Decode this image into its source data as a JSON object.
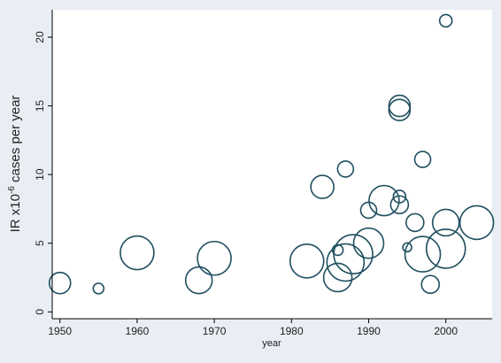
{
  "chart_data": {
    "type": "scatter",
    "title": "",
    "xlabel": "year",
    "ylabel_main": "IR x10",
    "ylabel_exp": "-6",
    "ylabel_rest": " cases per year",
    "xlim": [
      1949,
      2006
    ],
    "ylim": [
      -0.5,
      22
    ],
    "xticks": [
      1950,
      1960,
      1970,
      1980,
      1990,
      2000
    ],
    "yticks": [
      0,
      5,
      10,
      15,
      20
    ],
    "grid": false,
    "marker": "hollow circle sized by weight",
    "colors": {
      "plot_bg": "#ffffff",
      "outer_bg": "#e8eef3",
      "marker": "#1f4f5f",
      "axis": "#000000"
    },
    "points": [
      {
        "x": 1950,
        "y": 2.1,
        "size": 12
      },
      {
        "x": 1955,
        "y": 1.7,
        "size": 6
      },
      {
        "x": 1960,
        "y": 4.3,
        "size": 19
      },
      {
        "x": 1968,
        "y": 2.3,
        "size": 15
      },
      {
        "x": 1970,
        "y": 3.9,
        "size": 19
      },
      {
        "x": 1982,
        "y": 3.7,
        "size": 19
      },
      {
        "x": 1984,
        "y": 9.1,
        "size": 13
      },
      {
        "x": 1986,
        "y": 4.5,
        "size": 6
      },
      {
        "x": 1986,
        "y": 2.5,
        "size": 16
      },
      {
        "x": 1987,
        "y": 10.4,
        "size": 9
      },
      {
        "x": 1987,
        "y": 3.6,
        "size": 21
      },
      {
        "x": 1988,
        "y": 4.2,
        "size": 22
      },
      {
        "x": 1990,
        "y": 5.0,
        "size": 17
      },
      {
        "x": 1990,
        "y": 7.4,
        "size": 9
      },
      {
        "x": 1992,
        "y": 8.1,
        "size": 17
      },
      {
        "x": 1994,
        "y": 15.0,
        "size": 12
      },
      {
        "x": 1994,
        "y": 14.7,
        "size": 12
      },
      {
        "x": 1994,
        "y": 8.4,
        "size": 7
      },
      {
        "x": 1994,
        "y": 7.8,
        "size": 10
      },
      {
        "x": 1995,
        "y": 4.7,
        "size": 5
      },
      {
        "x": 1996,
        "y": 6.5,
        "size": 10
      },
      {
        "x": 1997,
        "y": 11.1,
        "size": 9
      },
      {
        "x": 1997,
        "y": 4.2,
        "size": 20
      },
      {
        "x": 1998,
        "y": 2.0,
        "size": 10
      },
      {
        "x": 2000,
        "y": 21.2,
        "size": 7
      },
      {
        "x": 2000,
        "y": 6.5,
        "size": 15
      },
      {
        "x": 2000,
        "y": 4.6,
        "size": 22
      },
      {
        "x": 2004,
        "y": 6.5,
        "size": 19
      }
    ]
  }
}
